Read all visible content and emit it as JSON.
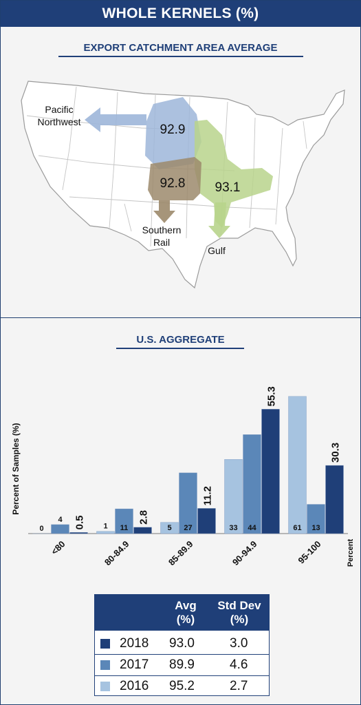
{
  "title": "WHOLE KERNELS (%)",
  "map_section": {
    "title": "EXPORT CATCHMENT AREA AVERAGE",
    "regions": [
      {
        "name_lines": [
          "Pacific",
          "Northwest"
        ],
        "value": "92.9",
        "color": "#9db6d9"
      },
      {
        "name_lines": [
          "Southern",
          "Rail"
        ],
        "value": "92.8",
        "color": "#9c8a6c"
      },
      {
        "name_lines": [
          "Gulf"
        ],
        "value": "93.1",
        "color": "#b8d48c"
      }
    ]
  },
  "chart_section": {
    "title": "U.S. AGGREGATE"
  },
  "colors": {
    "2018": "#1f3f78",
    "2017": "#5b87b8",
    "2016": "#a6c3e0"
  },
  "chart_data": {
    "type": "bar",
    "ylabel": "Percent of Samples (%)",
    "xlabel": "Percent",
    "categories": [
      "<80",
      "80-84.9",
      "85-89.9",
      "90-94.9",
      "95-100"
    ],
    "ylim": [
      0,
      60
    ],
    "series": [
      {
        "name": "2016",
        "values": [
          0,
          1,
          5,
          33,
          61
        ],
        "labels": [
          "0",
          "1",
          "5",
          "33",
          "61"
        ]
      },
      {
        "name": "2017",
        "values": [
          4,
          11,
          27,
          44,
          13
        ],
        "labels": [
          "4",
          "11",
          "27",
          "44",
          "13"
        ]
      },
      {
        "name": "2018",
        "values": [
          0.5,
          2.8,
          11.2,
          55.3,
          30.3
        ],
        "labels": [
          "0.5",
          "2.8",
          "11.2",
          "55.3",
          "30.3"
        ]
      }
    ]
  },
  "legend": {
    "headers": {
      "avg_line1": "Avg",
      "avg_line2": "(%)",
      "std_line1": "Std Dev",
      "std_line2": "(%)"
    },
    "rows": [
      {
        "year": "2018",
        "avg": "93.0",
        "std": "3.0"
      },
      {
        "year": "2017",
        "avg": "89.9",
        "std": "4.6"
      },
      {
        "year": "2016",
        "avg": "95.2",
        "std": "2.7"
      }
    ]
  }
}
